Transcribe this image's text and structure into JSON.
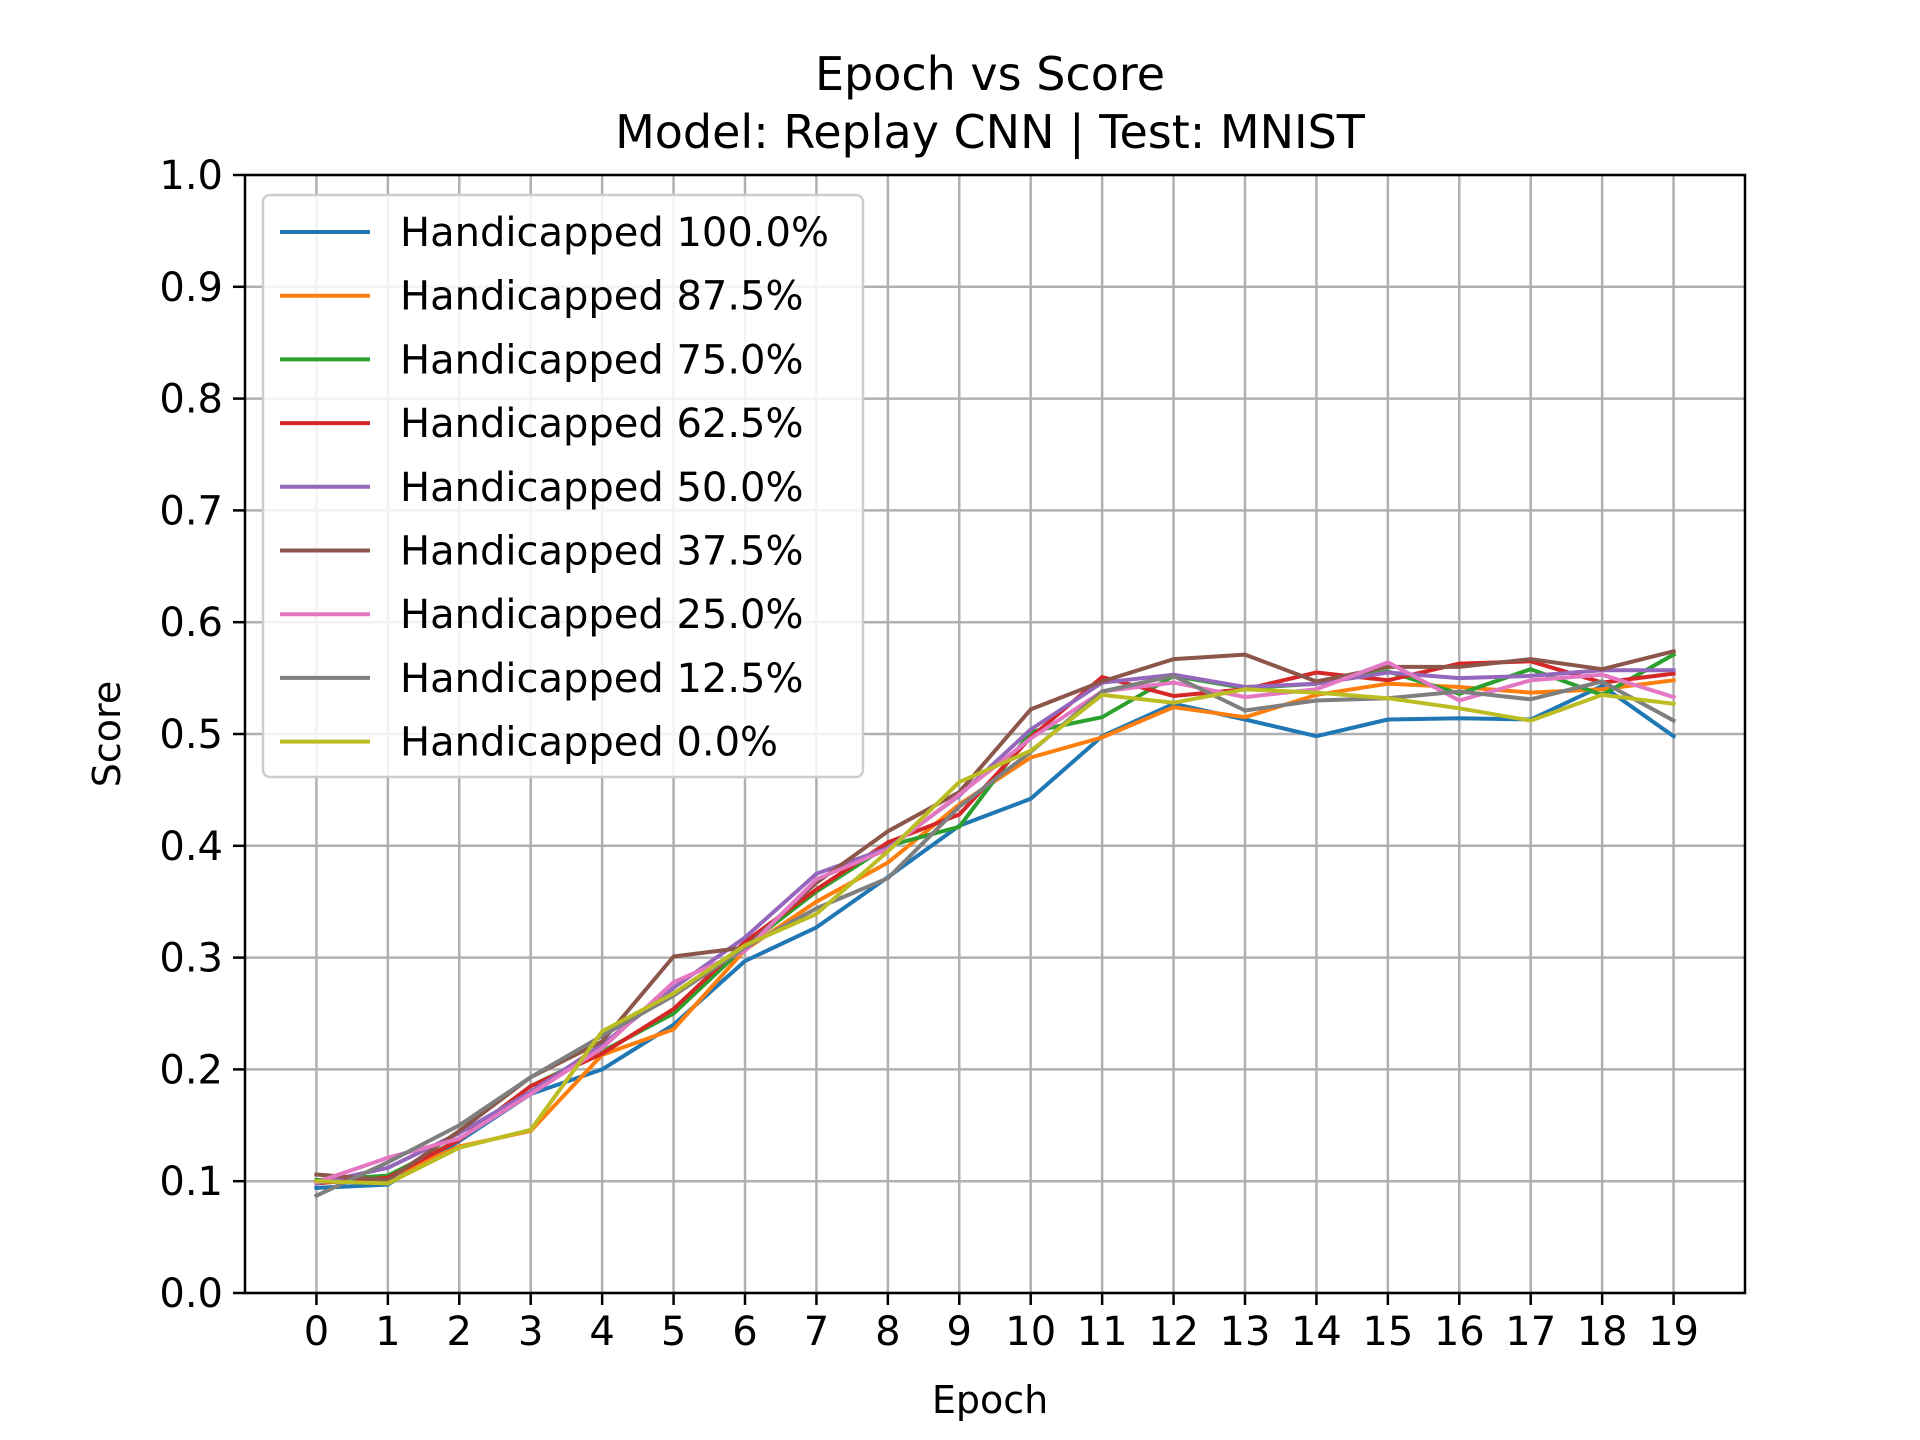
{
  "chart_data": {
    "type": "line",
    "title": "Epoch vs Score",
    "subtitle": "Model: Replay CNN | Test: MNIST",
    "xlabel": "Epoch",
    "ylabel": "Score",
    "xlim": [
      -1,
      20
    ],
    "ylim": [
      0.0,
      1.0
    ],
    "x_ticks": [
      0,
      1,
      2,
      3,
      4,
      5,
      6,
      7,
      8,
      9,
      10,
      11,
      12,
      13,
      14,
      15,
      16,
      17,
      18,
      19
    ],
    "y_ticks": [
      0.0,
      0.1,
      0.2,
      0.3,
      0.4,
      0.5,
      0.6,
      0.7,
      0.8,
      0.9,
      1.0
    ],
    "grid": true,
    "legend_position": "upper-left",
    "x": [
      0,
      1,
      2,
      3,
      4,
      5,
      6,
      7,
      8,
      9,
      10,
      11,
      12,
      13,
      14,
      15,
      16,
      17,
      18,
      19
    ],
    "series": [
      {
        "name": "Handicapped 100.0%",
        "color": "#1f77b4",
        "values": [
          0.094,
          0.097,
          0.136,
          0.178,
          0.2,
          0.24,
          0.297,
          0.327,
          0.372,
          0.418,
          0.442,
          0.498,
          0.527,
          0.513,
          0.498,
          0.513,
          0.514,
          0.513,
          0.543,
          0.498
        ]
      },
      {
        "name": "Handicapped 87.5%",
        "color": "#ff7f0e",
        "values": [
          0.1,
          0.103,
          0.131,
          0.145,
          0.213,
          0.236,
          0.307,
          0.35,
          0.385,
          0.437,
          0.479,
          0.497,
          0.524,
          0.515,
          0.535,
          0.545,
          0.542,
          0.537,
          0.54,
          0.548
        ]
      },
      {
        "name": "Handicapped 75.0%",
        "color": "#2ca02c",
        "values": [
          0.101,
          0.105,
          0.137,
          0.185,
          0.216,
          0.25,
          0.31,
          0.359,
          0.4,
          0.417,
          0.502,
          0.515,
          0.552,
          0.541,
          0.545,
          0.556,
          0.536,
          0.558,
          0.535,
          0.571
        ]
      },
      {
        "name": "Handicapped 62.5%",
        "color": "#d62728",
        "values": [
          0.098,
          0.103,
          0.137,
          0.185,
          0.214,
          0.254,
          0.314,
          0.361,
          0.403,
          0.428,
          0.497,
          0.551,
          0.534,
          0.54,
          0.555,
          0.548,
          0.563,
          0.565,
          0.546,
          0.554
        ]
      },
      {
        "name": "Handicapped 50.0%",
        "color": "#9467bd",
        "values": [
          0.098,
          0.112,
          0.143,
          0.18,
          0.222,
          0.273,
          0.318,
          0.375,
          0.398,
          0.445,
          0.504,
          0.546,
          0.553,
          0.542,
          0.545,
          0.555,
          0.55,
          0.552,
          0.557,
          0.557
        ]
      },
      {
        "name": "Handicapped 37.5%",
        "color": "#8c564b",
        "values": [
          0.106,
          0.101,
          0.145,
          0.193,
          0.225,
          0.301,
          0.309,
          0.367,
          0.413,
          0.448,
          0.522,
          0.547,
          0.567,
          0.571,
          0.547,
          0.56,
          0.56,
          0.567,
          0.558,
          0.574
        ]
      },
      {
        "name": "Handicapped 25.0%",
        "color": "#e377c2",
        "values": [
          0.099,
          0.121,
          0.138,
          0.178,
          0.219,
          0.278,
          0.306,
          0.37,
          0.397,
          0.446,
          0.496,
          0.538,
          0.546,
          0.533,
          0.54,
          0.564,
          0.53,
          0.548,
          0.553,
          0.533
        ]
      },
      {
        "name": "Handicapped 12.5%",
        "color": "#7f7f7f",
        "values": [
          0.087,
          0.117,
          0.15,
          0.193,
          0.23,
          0.266,
          0.309,
          0.344,
          0.371,
          0.435,
          0.484,
          0.538,
          0.552,
          0.521,
          0.53,
          0.532,
          0.538,
          0.531,
          0.547,
          0.512
        ]
      },
      {
        "name": "Handicapped 0.0%",
        "color": "#bcbd22",
        "values": [
          0.1,
          0.098,
          0.13,
          0.146,
          0.234,
          0.268,
          0.311,
          0.339,
          0.395,
          0.457,
          0.485,
          0.535,
          0.528,
          0.54,
          0.537,
          0.532,
          0.523,
          0.512,
          0.535,
          0.527
        ]
      }
    ]
  }
}
